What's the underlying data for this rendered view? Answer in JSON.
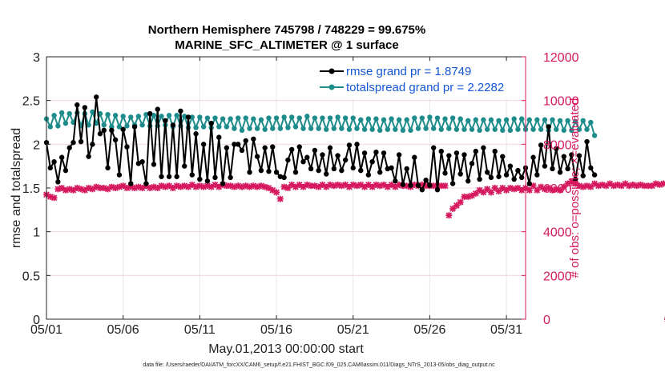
{
  "chart_data": {
    "type": "line",
    "title": "Northern Hemisphere 745798 / 748229 = 99.675%",
    "subtitle": "MARINE_SFC_ALTIMETER @ 1 surface",
    "xlabel": "May.01,2013 00:00:00 start",
    "ylabel": "rmse and totalspread",
    "ylabel_right": "# of obs: o=possible; ×=evaluated",
    "ylim": [
      0,
      3
    ],
    "ylim_right": [
      0,
      12000
    ],
    "xlim": [
      1,
      32.25
    ],
    "x_ticks": [
      1,
      6,
      11,
      16,
      21,
      26,
      31
    ],
    "x_tick_labels": [
      "05/01",
      "05/06",
      "05/11",
      "05/16",
      "05/21",
      "05/26",
      "05/31"
    ],
    "y_ticks": [
      0,
      0.5,
      1,
      1.5,
      2,
      2.5,
      3
    ],
    "y_tick_labels": [
      "0",
      "0.5",
      "1",
      "1.5",
      "2",
      "2.5",
      "3"
    ],
    "y_ticks_right": [
      0,
      2000,
      4000,
      6000,
      8000,
      10000,
      12000
    ],
    "y_tick_labels_right": [
      "0",
      "2000",
      "4000",
      "6000",
      "8000",
      "10000",
      "12000"
    ],
    "grid": true,
    "legend_position": "top-right",
    "footer": "data file: /Users/raeder/DAI/ATM_forcXX/CAM6_setup/f.e21.FHIST_BGC.f09_025.CAM6assim.011/Diags_NTrS_2013-05/obs_diag_output.nc",
    "series": [
      {
        "name": "rmse grand pr = 1.8749",
        "color": "#000000",
        "axis": "left",
        "x_start": 1.0,
        "x_step": 0.25,
        "values": [
          2.02,
          1.73,
          1.8,
          1.57,
          1.85,
          1.7,
          1.96,
          2.02,
          2.45,
          2.03,
          2.42,
          1.86,
          2.0,
          2.54,
          2.12,
          2.16,
          1.73,
          2.16,
          2.05,
          1.65,
          2.17,
          1.97,
          1.55,
          2.2,
          1.78,
          1.8,
          1.55,
          2.35,
          1.77,
          2.4,
          1.63,
          2.27,
          1.63,
          2.22,
          1.63,
          2.38,
          1.75,
          2.31,
          1.65,
          2.12,
          1.6,
          2.0,
          1.58,
          2.24,
          1.62,
          2.08,
          1.55,
          1.96,
          1.62,
          2.0,
          2.0,
          1.93,
          2.04,
          1.68,
          2.06,
          1.86,
          1.7,
          1.96,
          1.69,
          1.97,
          1.68,
          1.63,
          1.62,
          1.82,
          1.94,
          1.68,
          1.97,
          1.8,
          1.85,
          1.72,
          1.93,
          1.7,
          1.88,
          1.66,
          1.96,
          1.72,
          1.87,
          1.7,
          1.82,
          1.99,
          1.73,
          2.0,
          1.7,
          1.9,
          1.65,
          1.8,
          1.91,
          1.68,
          1.9,
          1.72,
          1.73,
          1.58,
          1.88,
          1.54,
          1.72,
          1.53,
          1.85,
          1.53,
          1.48,
          1.59,
          1.53,
          1.96,
          1.48,
          1.92,
          1.67,
          1.87,
          1.55,
          1.9,
          1.66,
          1.88,
          1.58,
          1.78,
          1.92,
          1.6,
          1.96,
          1.68,
          1.62,
          1.92,
          1.63,
          1.86,
          1.65,
          1.75,
          1.6,
          1.7,
          1.62,
          1.73,
          1.55,
          1.85,
          1.65,
          1.99,
          1.75,
          2.2,
          1.72,
          1.95,
          1.68,
          1.86,
          1.72,
          1.88,
          1.6,
          1.87,
          1.64,
          2.03,
          1.73,
          1.65
        ]
      },
      {
        "name": "totalspread grand pr = 2.2282",
        "color": "#1f8c8c",
        "axis": "left",
        "x_start": 1.0,
        "x_step": 0.25,
        "values": [
          2.29,
          2.2,
          2.33,
          2.21,
          2.36,
          2.24,
          2.35,
          2.25,
          2.36,
          2.21,
          2.35,
          2.22,
          2.37,
          2.24,
          2.35,
          2.22,
          2.34,
          2.2,
          2.33,
          2.2,
          2.32,
          2.21,
          2.31,
          2.22,
          2.32,
          2.22,
          2.34,
          2.21,
          2.33,
          2.21,
          2.32,
          2.22,
          2.33,
          2.2,
          2.33,
          2.21,
          2.32,
          2.19,
          2.31,
          2.19,
          2.31,
          2.2,
          2.3,
          2.19,
          2.3,
          2.2,
          2.29,
          2.2,
          2.29,
          2.18,
          2.3,
          2.16,
          2.3,
          2.18,
          2.29,
          2.18,
          2.28,
          2.17,
          2.3,
          2.18,
          2.3,
          2.18,
          2.31,
          2.19,
          2.31,
          2.2,
          2.3,
          2.18,
          2.32,
          2.18,
          2.3,
          2.18,
          2.3,
          2.17,
          2.3,
          2.18,
          2.31,
          2.18,
          2.3,
          2.17,
          2.3,
          2.18,
          2.28,
          2.17,
          2.29,
          2.17,
          2.29,
          2.16,
          2.28,
          2.17,
          2.29,
          2.17,
          2.28,
          2.16,
          2.28,
          2.16,
          2.3,
          2.18,
          2.3,
          2.18,
          2.31,
          2.18,
          2.3,
          2.17,
          2.29,
          2.18,
          2.3,
          2.17,
          2.29,
          2.17,
          2.27,
          2.17,
          2.28,
          2.16,
          2.28,
          2.17,
          2.28,
          2.17,
          2.27,
          2.16,
          2.28,
          2.16,
          2.29,
          2.17,
          2.29,
          2.17,
          2.28,
          2.17,
          2.28,
          2.17,
          2.28,
          2.16,
          2.28,
          2.17,
          2.27,
          2.16,
          2.27,
          2.16,
          2.26,
          2.17,
          2.27,
          2.17,
          2.25,
          2.1
        ]
      },
      {
        "name": "# of obs evaluated",
        "color": "#d6195f",
        "axis": "right",
        "x_start": 1.0,
        "x_step": 0.25,
        "values": [
          5700,
          5600,
          5550,
          5950,
          6000,
          5900,
          5950,
          5900,
          6000,
          5950,
          5900,
          6000,
          5950,
          6050,
          6000,
          6000,
          5950,
          6050,
          6000,
          6050,
          6100,
          6000,
          6050,
          6000,
          6050,
          6000,
          6100,
          6000,
          6050,
          6000,
          6100,
          6050,
          6100,
          6000,
          6100,
          6050,
          6100,
          6050,
          6150,
          6050,
          6100,
          6050,
          6100,
          6050,
          6150,
          6050,
          6150,
          6100,
          6100,
          6050,
          6100,
          6050,
          6100,
          6050,
          6100,
          6050,
          6100,
          6050,
          6000,
          5900,
          5800,
          5500,
          6050,
          6000,
          6150,
          6050,
          6150,
          6050,
          6150,
          6100,
          6100,
          6050,
          6150,
          6050,
          6150,
          6100,
          6150,
          6100,
          6150,
          6050,
          6150,
          6100,
          6150,
          6050,
          6150,
          6050,
          6150,
          6100,
          6150,
          6050,
          6150,
          6050,
          6150,
          6100,
          6100,
          6050,
          6150,
          6100,
          6150,
          6100,
          6100,
          6100,
          6100,
          6100,
          6100,
          4750,
          5050,
          5200,
          5350,
          5600,
          5600,
          5650,
          5750,
          5900,
          5800,
          5950,
          5800,
          6000,
          5850,
          6000,
          5900,
          6000,
          5950,
          6000,
          5900,
          6000,
          5900,
          6100,
          5900,
          6050,
          5950,
          6000,
          5900,
          5950,
          5900,
          6050,
          6200,
          6300,
          6200,
          6100,
          6050,
          6100,
          6050,
          6200,
          6100,
          6150,
          6100,
          6200,
          6100,
          6150,
          6100,
          6200,
          6100,
          6150,
          6100,
          6150,
          6100,
          6100,
          6100,
          6200,
          6150,
          6200,
          0
        ]
      }
    ]
  }
}
